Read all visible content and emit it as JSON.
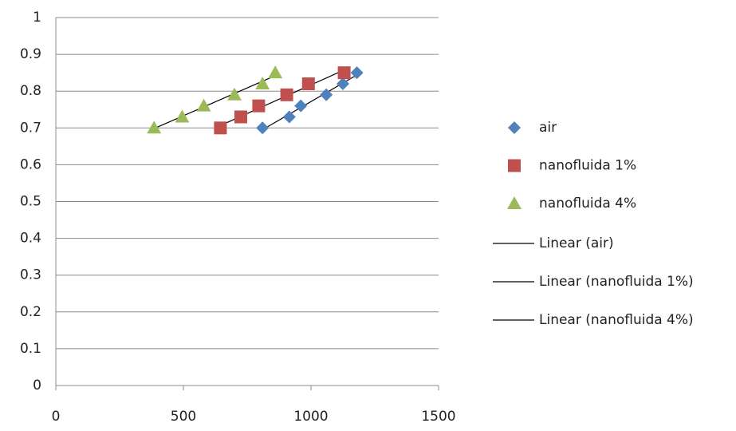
{
  "chart_data": {
    "type": "scatter",
    "xlim": [
      0,
      1500
    ],
    "xticks": [
      0,
      500,
      1000,
      1500
    ],
    "ylim": [
      0,
      1
    ],
    "yticks": [
      0,
      0.1,
      0.2,
      0.3,
      0.4,
      0.5,
      0.6,
      0.7,
      0.8,
      0.9,
      1
    ],
    "grid": true,
    "legend": "right",
    "series": [
      {
        "name": "air",
        "trendline": "Linear (air)",
        "color": "#4f81bd",
        "marker": "diamond",
        "x": [
          810,
          915,
          960,
          1060,
          1125,
          1180
        ],
        "values": [
          0.7,
          0.73,
          0.76,
          0.79,
          0.82,
          0.85
        ]
      },
      {
        "name": "nanofluida 1%",
        "trendline": "Linear (nanofluida 1%)",
        "color": "#c0504d",
        "marker": "square",
        "x": [
          645,
          725,
          795,
          905,
          990,
          1130
        ],
        "values": [
          0.7,
          0.73,
          0.76,
          0.79,
          0.82,
          0.85
        ]
      },
      {
        "name": "nanofluida 4%",
        "trendline": "Linear (nanofluida 4%)",
        "color": "#9bbb59",
        "marker": "triangle",
        "x": [
          385,
          495,
          580,
          700,
          810,
          860
        ],
        "values": [
          0.7,
          0.73,
          0.76,
          0.79,
          0.82,
          0.85
        ]
      }
    ]
  }
}
